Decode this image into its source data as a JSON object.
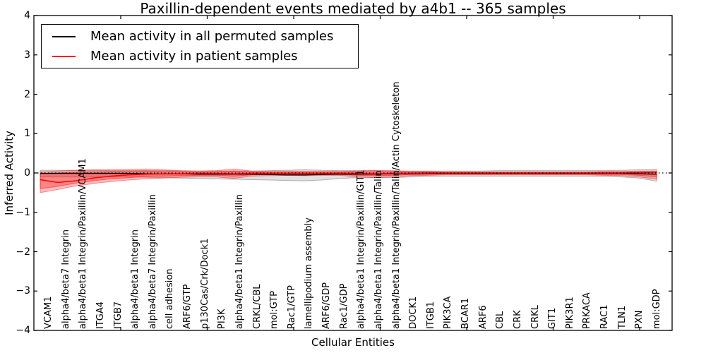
{
  "figure": {
    "title": "Paxillin-dependent events mediated by a4b1 -- 365 samples",
    "xlabel": "Cellular Entities",
    "ylabel": "Inferred Activity"
  },
  "legend": {
    "items": [
      {
        "label": "Mean activity in all permuted samples",
        "color": "#000000"
      },
      {
        "label": "Mean activity in patient samples",
        "color": "#ff0000"
      }
    ]
  },
  "chart_data": {
    "type": "line",
    "title": "Paxillin-dependent events mediated by a4b1 -- 365 samples",
    "xlabel": "Cellular Entities",
    "ylabel": "Inferred Activity",
    "ylim": [
      -4,
      4
    ],
    "yticks": [
      4,
      3,
      2,
      1,
      0,
      -1,
      -2,
      -3,
      -4
    ],
    "grid": false,
    "legend_position": "upper left",
    "zero_line": {
      "y": 0,
      "style": "dotted",
      "color": "#000000"
    },
    "categories": [
      "VCAM1",
      "alpha4/beta7 Integrin",
      "alpha4/beta1 Integrin/Paxillin/VCAM1",
      "ITGA4",
      "ITGB7",
      "alpha4/beta1 Integrin",
      "alpha4/beta7 Integrin/Paxillin",
      "cell adhesion",
      "ARF6/GTP",
      "p130Cas/Crk/Dock1",
      "PI3K",
      "alpha4/beta1 Integrin/Paxillin",
      "CRKL/CBL",
      "mol:GTP",
      "Rac1/GTP",
      "lamellipodium assembly",
      "ARF6/GDP",
      "Rac1/GDP",
      "alpha4/beta1 Integrin/Paxillin/GIT1",
      "alpha4/beta1 Integrin/Paxillin/Talin",
      "alpha4/beta1 Integrin/Paxillin/Talin/Actin Cytoskeleton",
      "DOCK1",
      "ITGB1",
      "PIK3CA",
      "BCAR1",
      "ARF6",
      "CBL",
      "CRK",
      "CRKL",
      "GIT1",
      "PIK3R1",
      "PRKACA",
      "RAC1",
      "TLN1",
      "PXN",
      "mol:GDP"
    ],
    "series": [
      {
        "name": "Mean activity in all permuted samples",
        "color": "#000000",
        "style": "solid",
        "values": [
          -0.01,
          -0.01,
          -0.01,
          -0.01,
          -0.01,
          -0.01,
          -0.02,
          -0.02,
          -0.02,
          -0.03,
          -0.03,
          -0.03,
          -0.03,
          -0.04,
          -0.05,
          -0.05,
          -0.04,
          -0.03,
          -0.03,
          -0.03,
          -0.02,
          -0.02,
          -0.01,
          -0.01,
          -0.01,
          -0.01,
          -0.01,
          -0.01,
          -0.01,
          -0.01,
          -0.01,
          -0.01,
          -0.01,
          -0.01,
          -0.02,
          -0.03
        ]
      },
      {
        "name": "Mean activity in patient samples",
        "color": "#ff0000",
        "style": "solid",
        "values": [
          -0.17,
          -0.24,
          -0.2,
          -0.13,
          -0.08,
          -0.05,
          -0.03,
          -0.02,
          -0.02,
          -0.01,
          -0.01,
          -0.02,
          -0.01,
          -0.01,
          -0.01,
          -0.01,
          -0.01,
          -0.01,
          -0.01,
          -0.02,
          -0.01,
          -0.01,
          0,
          0,
          0,
          0,
          0,
          0,
          0,
          0,
          0,
          0,
          0,
          0,
          0.01,
          0.02
        ]
      }
    ],
    "bands": [
      {
        "name": "permuted-range",
        "color": "#000000",
        "opacity": 0.12,
        "hi": [
          0.07,
          0.07,
          0.07,
          0.07,
          0.06,
          0.06,
          0.06,
          0.06,
          0.05,
          0.05,
          0.05,
          0.05,
          0.05,
          0.06,
          0.07,
          0.08,
          0.07,
          0.06,
          0.06,
          0.06,
          0.06,
          0.05,
          0.05,
          0.05,
          0.05,
          0.05,
          0.06,
          0.06,
          0.06,
          0.06,
          0.06,
          0.06,
          0.06,
          0.07,
          0.08,
          0.09
        ],
        "lo": [
          -0.1,
          -0.1,
          -0.1,
          -0.1,
          -0.1,
          -0.1,
          -0.11,
          -0.12,
          -0.13,
          -0.14,
          -0.15,
          -0.16,
          -0.17,
          -0.18,
          -0.19,
          -0.2,
          -0.18,
          -0.14,
          -0.12,
          -0.12,
          -0.12,
          -0.1,
          -0.09,
          -0.08,
          -0.08,
          -0.08,
          -0.08,
          -0.08,
          -0.08,
          -0.08,
          -0.08,
          -0.08,
          -0.09,
          -0.1,
          -0.13,
          -0.21
        ]
      },
      {
        "name": "patient-range-outer",
        "color": "#ff0000",
        "opacity": 0.25,
        "hi": [
          0.03,
          0.05,
          0.07,
          0.08,
          0.08,
          0.09,
          0.1,
          0.08,
          0.06,
          0.05,
          0.06,
          0.1,
          0.05,
          0.04,
          0.04,
          0.04,
          0.04,
          0.04,
          0.05,
          0.06,
          0.05,
          0.04,
          0.04,
          0.03,
          0.03,
          0.03,
          0.03,
          0.03,
          0.03,
          0.03,
          0.03,
          0.03,
          0.04,
          0.04,
          0.05,
          0.05
        ],
        "lo": [
          -0.5,
          -0.42,
          -0.33,
          -0.27,
          -0.22,
          -0.18,
          -0.15,
          -0.13,
          -0.11,
          -0.1,
          -0.1,
          -0.14,
          -0.08,
          -0.07,
          -0.06,
          -0.07,
          -0.06,
          -0.06,
          -0.1,
          -0.12,
          -0.1,
          -0.07,
          -0.06,
          -0.05,
          -0.05,
          -0.05,
          -0.05,
          -0.05,
          -0.05,
          -0.05,
          -0.05,
          -0.05,
          -0.06,
          -0.07,
          -0.1,
          -0.16
        ]
      },
      {
        "name": "patient-range-inner",
        "color": "#ff0000",
        "opacity": 0.3,
        "hi": [
          -0.02,
          0.0,
          0.02,
          0.03,
          0.04,
          0.04,
          0.05,
          0.04,
          0.03,
          0.02,
          0.03,
          0.05,
          0.02,
          0.02,
          0.02,
          0.02,
          0.02,
          0.02,
          0.03,
          0.03,
          0.03,
          0.02,
          0.02,
          0.01,
          0.01,
          0.01,
          0.01,
          0.01,
          0.01,
          0.01,
          0.01,
          0.01,
          0.02,
          0.02,
          0.03,
          0.03
        ],
        "lo": [
          -0.4,
          -0.34,
          -0.26,
          -0.2,
          -0.15,
          -0.12,
          -0.09,
          -0.08,
          -0.07,
          -0.06,
          -0.06,
          -0.08,
          -0.05,
          -0.04,
          -0.04,
          -0.04,
          -0.04,
          -0.04,
          -0.06,
          -0.07,
          -0.06,
          -0.04,
          -0.04,
          -0.03,
          -0.03,
          -0.03,
          -0.03,
          -0.03,
          -0.03,
          -0.03,
          -0.03,
          -0.03,
          -0.04,
          -0.04,
          -0.06,
          -0.1
        ]
      }
    ]
  }
}
